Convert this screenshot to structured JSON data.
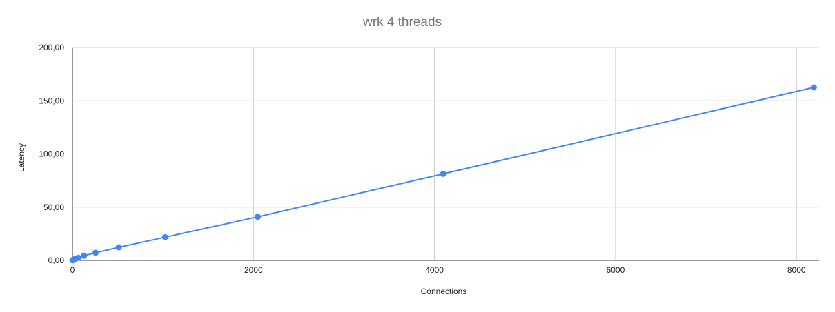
{
  "chart_data": {
    "type": "line",
    "title": "wrk 4 threads",
    "xlabel": "Connections",
    "ylabel": "Latency",
    "xlim": [
      0,
      8250
    ],
    "ylim": [
      0,
      200
    ],
    "x_ticks": [
      0,
      2000,
      4000,
      6000,
      8000
    ],
    "x_tick_labels": [
      "0",
      "2000",
      "4000",
      "6000",
      "8000"
    ],
    "y_ticks": [
      0,
      50,
      100,
      150,
      200
    ],
    "y_tick_labels": [
      "0,00",
      "50,00",
      "100,00",
      "150,00",
      "200,00"
    ],
    "grid": true,
    "legend": "none",
    "series": [
      {
        "color": "#4285f4",
        "x": [
          1,
          2,
          4,
          8,
          16,
          32,
          64,
          128,
          256,
          512,
          1024,
          2048,
          4096,
          8192
        ],
        "y": [
          0.1,
          0.2,
          0.3,
          0.5,
          0.8,
          1.4,
          2.4,
          4.4,
          7.2,
          12.3,
          21.8,
          40.9,
          81.3,
          162.5
        ]
      }
    ]
  }
}
